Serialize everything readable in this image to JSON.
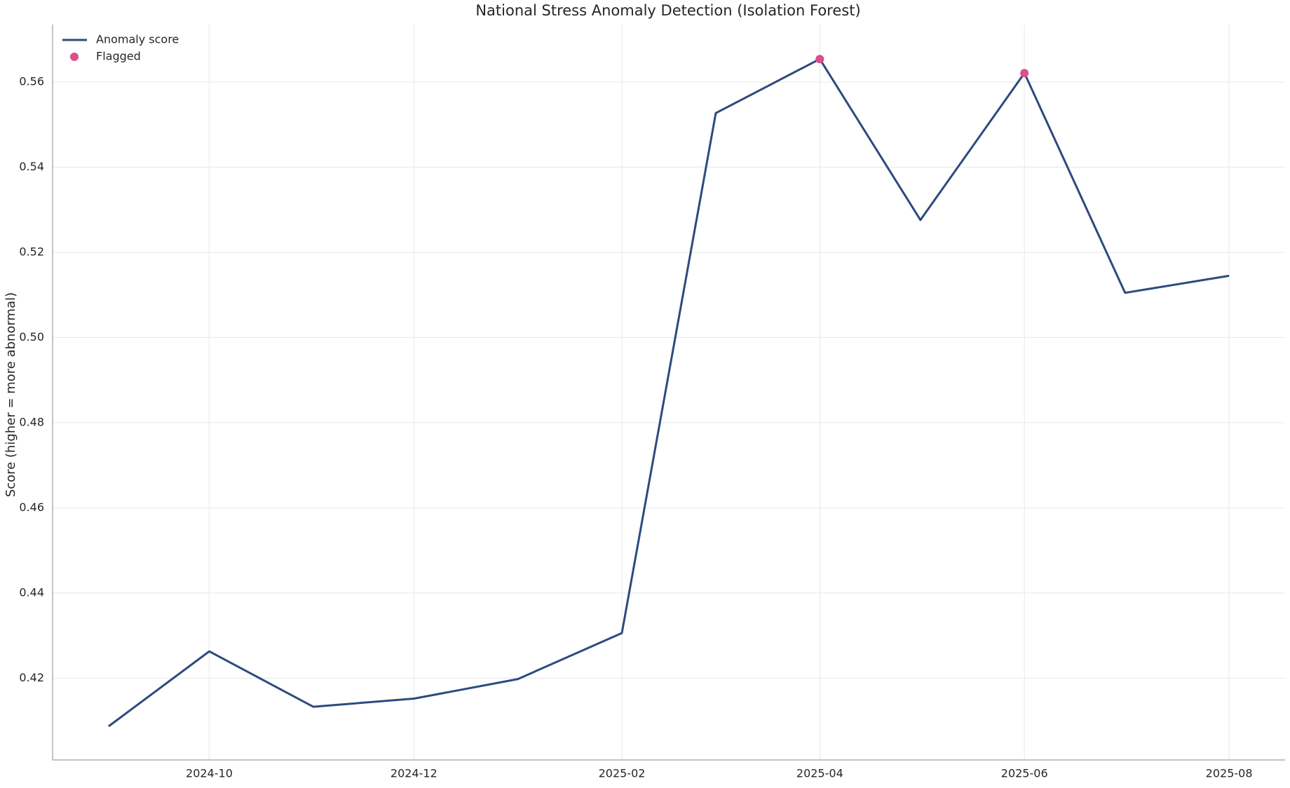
{
  "chart_data": {
    "type": "line",
    "title": "National Stress Anomaly Detection (Isolation Forest)",
    "y_label": "Score (higher = more abnormal)",
    "x": [
      "2024-09",
      "2024-10",
      "2024-11",
      "2024-12",
      "2025-01",
      "2025-02",
      "2025-03",
      "2025-04",
      "2025-05",
      "2025-06",
      "2025-07",
      "2025-08"
    ],
    "series": [
      {
        "name": "Anomaly score",
        "type": "line",
        "color": "#2e4a7d",
        "values": [
          0.4087,
          0.4263,
          0.4133,
          0.4152,
          0.4198,
          0.4306,
          0.5527,
          0.5654,
          0.5276,
          0.5621,
          0.5105,
          0.5145
        ]
      },
      {
        "name": "Flagged",
        "type": "scatter",
        "color": "#d9508a",
        "x": [
          "2025-04",
          "2025-06"
        ],
        "values": [
          0.5654,
          0.5621
        ]
      }
    ],
    "ylim": [
      0.4008,
      0.5735
    ],
    "yticks": [
      0.42,
      0.44,
      0.46,
      0.48,
      {
        "value": 0.5,
        "label": "0.50"
      },
      0.52,
      0.54,
      0.56
    ],
    "xticks": [
      "2024-10",
      "2024-12",
      "2025-02",
      "2025-04",
      "2025-06",
      "2025-08"
    ],
    "grid": true,
    "legend": "upper-left"
  }
}
